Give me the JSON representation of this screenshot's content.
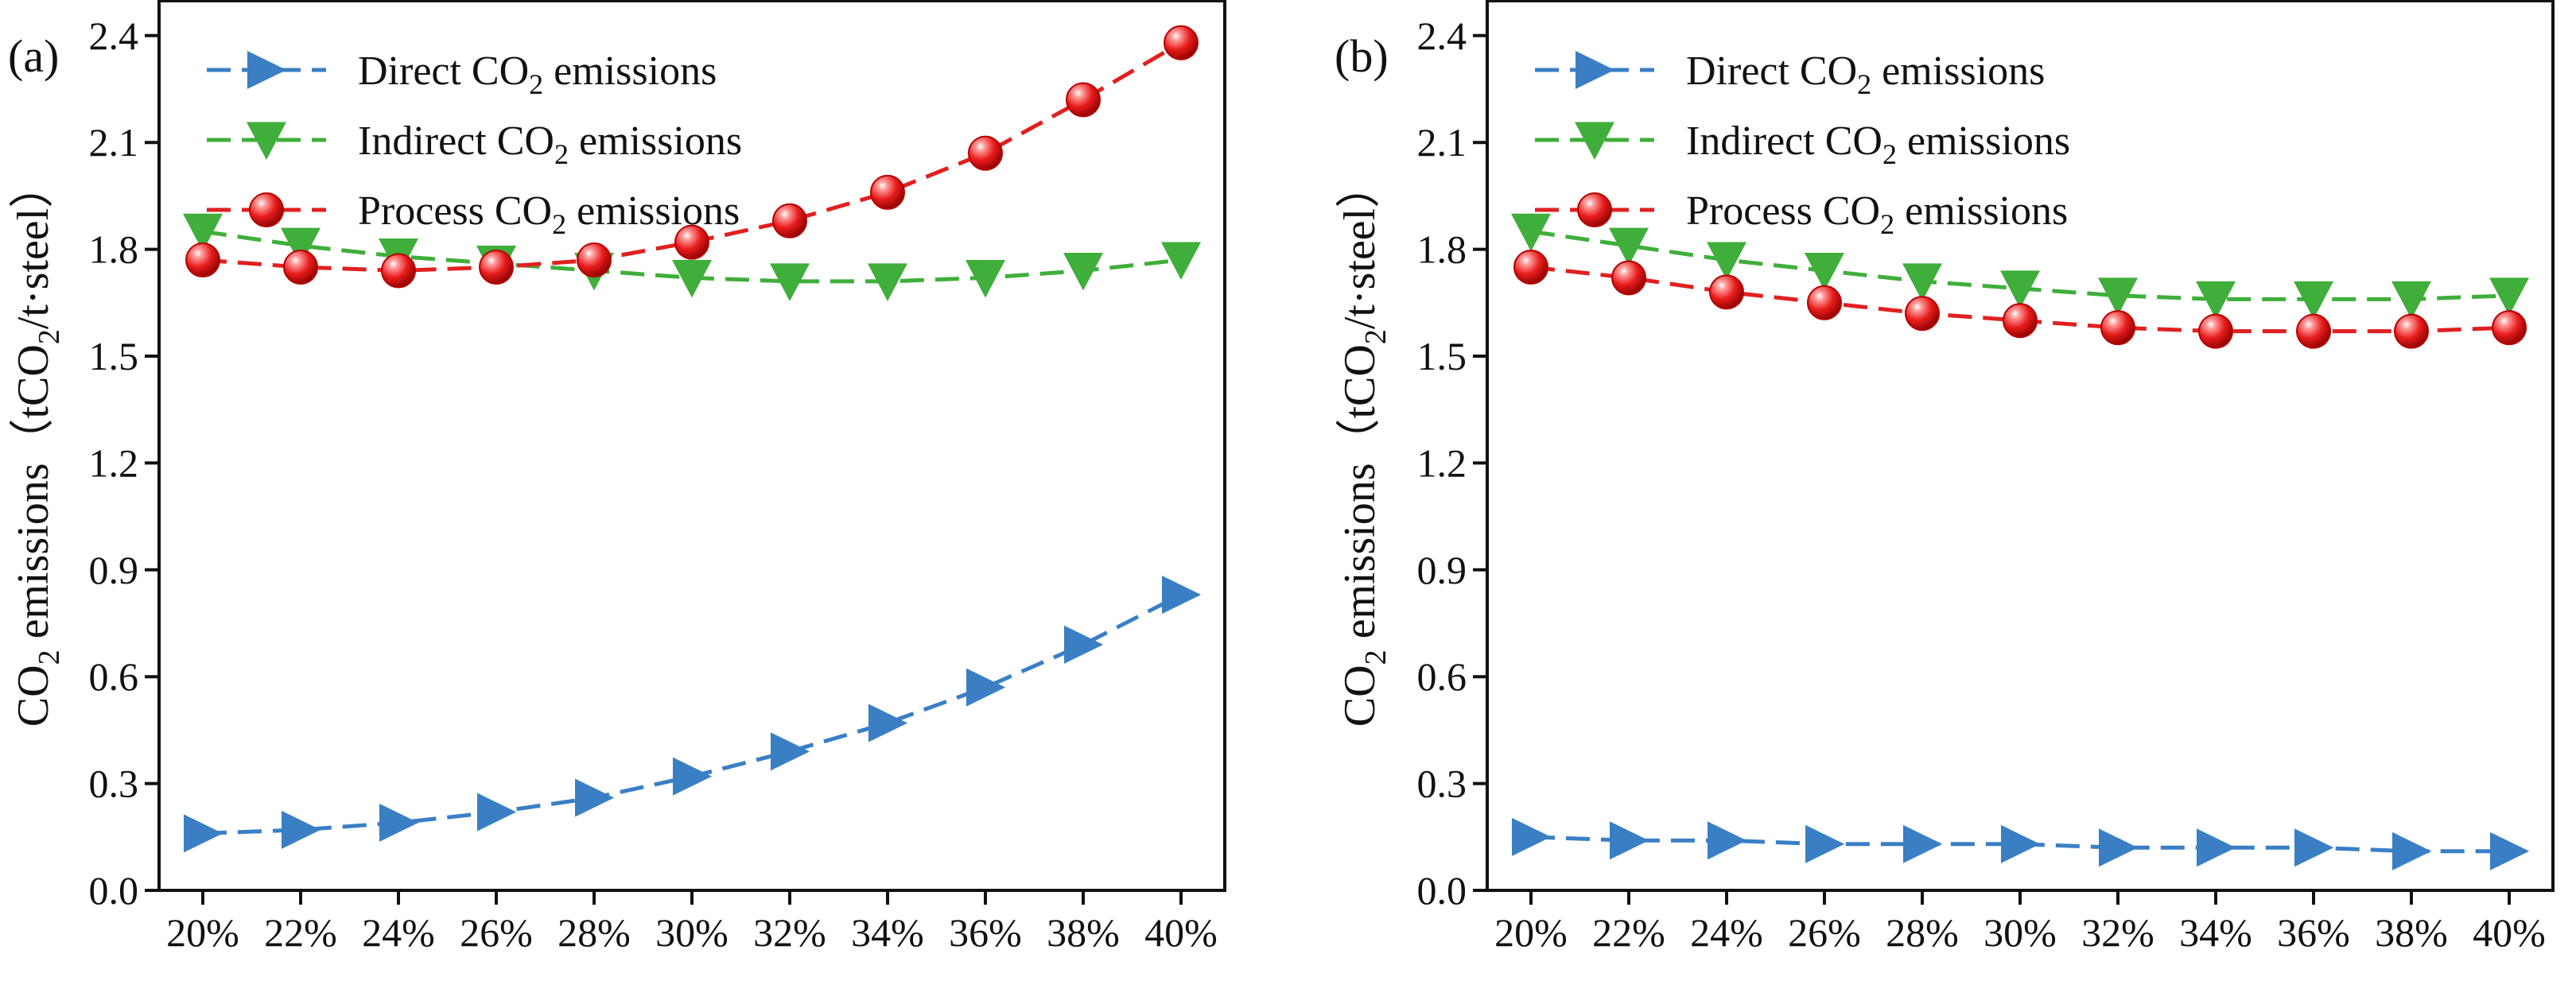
{
  "chart_data": [
    {
      "type": "line",
      "panel_label": "(a)",
      "title": "",
      "xlabel": "",
      "ylabel": "CO2 emissions（tCO2/t·steel）",
      "ylabel_parts": {
        "pre": "CO",
        "sub1": "2",
        "mid": " emissions（tCO",
        "sub2": "2",
        "post": "/t·steel）"
      },
      "categories": [
        "20%",
        "22%",
        "24%",
        "26%",
        "28%",
        "30%",
        "32%",
        "34%",
        "36%",
        "38%",
        "40%"
      ],
      "ylim": [
        0,
        2.5
      ],
      "yticks": [
        "0.0",
        "0.3",
        "0.6",
        "0.9",
        "1.2",
        "1.5",
        "1.8",
        "2.1",
        "2.4"
      ],
      "legend_position": "top-left",
      "series": [
        {
          "name": "Direct CO2 emissions",
          "label_pre": "Direct CO",
          "label_sub": "2",
          "label_post": " emissions",
          "marker": "triangle-right",
          "color": "#3a7fc4",
          "values": [
            0.16,
            0.17,
            0.19,
            0.22,
            0.26,
            0.32,
            0.39,
            0.47,
            0.57,
            0.69,
            0.83
          ]
        },
        {
          "name": "Indirect CO2 emissions",
          "label_pre": "Indirect CO",
          "label_sub": "2",
          "label_post": " emissions",
          "marker": "triangle-down",
          "color": "#3fae3a",
          "values": [
            1.85,
            1.81,
            1.78,
            1.76,
            1.74,
            1.72,
            1.71,
            1.71,
            1.72,
            1.74,
            1.77
          ]
        },
        {
          "name": "Process CO2 emissions",
          "label_pre": "Process CO",
          "label_sub": "2",
          "label_post": " emissions",
          "marker": "sphere",
          "color": "#e02020",
          "values": [
            1.77,
            1.75,
            1.74,
            1.75,
            1.77,
            1.82,
            1.88,
            1.96,
            2.07,
            2.22,
            2.38
          ]
        }
      ]
    },
    {
      "type": "line",
      "panel_label": "(b)",
      "title": "",
      "xlabel": "",
      "ylabel": "CO2 emissions（tCO2/t·steel）",
      "ylabel_parts": {
        "pre": "CO",
        "sub1": "2",
        "mid": " emissions（tCO",
        "sub2": "2",
        "post": "/t·steel）"
      },
      "categories": [
        "20%",
        "22%",
        "24%",
        "26%",
        "28%",
        "30%",
        "32%",
        "34%",
        "36%",
        "38%",
        "40%"
      ],
      "ylim": [
        0,
        2.5
      ],
      "yticks": [
        "0.0",
        "0.3",
        "0.6",
        "0.9",
        "1.2",
        "1.5",
        "1.8",
        "2.1",
        "2.4"
      ],
      "legend_position": "top-left",
      "series": [
        {
          "name": "Direct CO2 emissions",
          "label_pre": "Direct CO",
          "label_sub": "2",
          "label_post": " emissions",
          "marker": "triangle-right",
          "color": "#3a7fc4",
          "values": [
            0.15,
            0.14,
            0.14,
            0.13,
            0.13,
            0.13,
            0.12,
            0.12,
            0.12,
            0.11,
            0.11
          ]
        },
        {
          "name": "Indirect CO2 emissions",
          "label_pre": "Indirect CO",
          "label_sub": "2",
          "label_post": " emissions",
          "marker": "triangle-down",
          "color": "#3fae3a",
          "values": [
            1.85,
            1.81,
            1.77,
            1.74,
            1.71,
            1.69,
            1.67,
            1.66,
            1.66,
            1.66,
            1.67
          ]
        },
        {
          "name": "Process CO2 emissions",
          "label_pre": "Process CO",
          "label_sub": "2",
          "label_post": " emissions",
          "marker": "sphere",
          "color": "#e02020",
          "values": [
            1.75,
            1.72,
            1.68,
            1.65,
            1.62,
            1.6,
            1.58,
            1.57,
            1.57,
            1.57,
            1.58
          ]
        }
      ]
    }
  ]
}
